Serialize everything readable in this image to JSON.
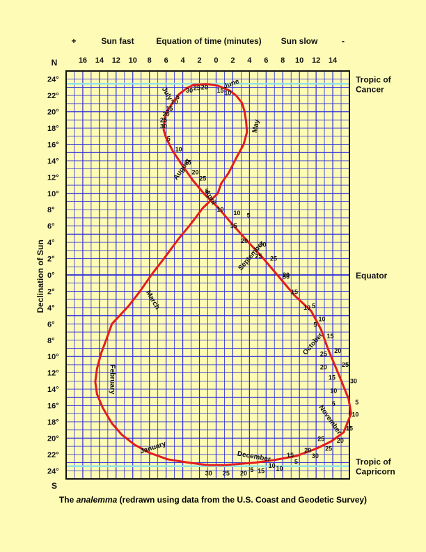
{
  "chart_data": {
    "type": "line",
    "top_labels": {
      "plus": "+",
      "sun_fast": "Sun fast",
      "title": "Equation of time (minutes)",
      "sun_slow": "Sun slow",
      "minus": "-"
    },
    "x_ticks": [
      "16",
      "14",
      "12",
      "10",
      "8",
      "6",
      "4",
      "2",
      "0",
      "2",
      "4",
      "6",
      "8",
      "10",
      "12",
      "14"
    ],
    "x_tick_values": [
      16,
      14,
      12,
      10,
      8,
      6,
      4,
      2,
      0,
      -2,
      -4,
      -6,
      -8,
      -10,
      -12,
      -14
    ],
    "xlim": [
      18,
      -16
    ],
    "ylabel": "Declination of Sun",
    "north": "N",
    "south": "S",
    "y_ticks": [
      "24°",
      "22°",
      "20°",
      "18°",
      "16°",
      "14°",
      "12°",
      "10°",
      "8°",
      "6°",
      "4°",
      "2°",
      "0°",
      "2°",
      "4°",
      "6°",
      "8°",
      "10°",
      "12°",
      "14°",
      "16°",
      "18°",
      "20°",
      "22°",
      "24°"
    ],
    "y_tick_values": [
      24,
      22,
      20,
      18,
      16,
      14,
      12,
      10,
      8,
      6,
      4,
      2,
      0,
      -2,
      -4,
      -6,
      -8,
      -10,
      -12,
      -14,
      -16,
      -18,
      -20,
      -22,
      -24
    ],
    "ylim": [
      25,
      -25
    ],
    "reference_lines": [
      {
        "label": "Tropic of Cancer",
        "value": 23.44
      },
      {
        "label": "Equator",
        "value": 0
      },
      {
        "label": "Tropic of Capricorn",
        "value": -23.44
      }
    ],
    "series": [
      {
        "color": "#e31d1d",
        "points": [
          {
            "x": 3.3,
            "y": -23.0
          },
          {
            "x": 5.8,
            "y": -22.6
          },
          {
            "x": 8.0,
            "y": -21.8
          },
          {
            "x": 9.8,
            "y": -20.8
          },
          {
            "x": 11.3,
            "y": -19.6
          },
          {
            "x": 12.5,
            "y": -18.2
          },
          {
            "x": 13.6,
            "y": -16.3
          },
          {
            "x": 14.3,
            "y": -14.6
          },
          {
            "x": 14.5,
            "y": -13.1
          },
          {
            "x": 14.3,
            "y": -11.5
          },
          {
            "x": 13.8,
            "y": -9.6
          },
          {
            "x": 13.1,
            "y": -7.7
          },
          {
            "x": 12.5,
            "y": -6.0
          },
          {
            "x": 10.5,
            "y": -3.8
          },
          {
            "x": 9.2,
            "y": -2.1
          },
          {
            "x": 7.7,
            "y": 0.1
          },
          {
            "x": 6.2,
            "y": 2.1
          },
          {
            "x": 4.6,
            "y": 4.3
          },
          {
            "x": 3.0,
            "y": 6.3
          },
          {
            "x": 1.6,
            "y": 8.2
          },
          {
            "x": -0.2,
            "y": 10.0
          },
          {
            "x": -0.6,
            "y": 11.2
          },
          {
            "x": -1.5,
            "y": 12.5
          },
          {
            "x": -2.5,
            "y": 14.5
          },
          {
            "x": -3.3,
            "y": 16.0
          },
          {
            "x": -3.7,
            "y": 17.5
          },
          {
            "x": -3.6,
            "y": 18.8
          },
          {
            "x": -3.4,
            "y": 20.1
          },
          {
            "x": -3.1,
            "y": 21.1
          },
          {
            "x": -2.4,
            "y": 22.0
          },
          {
            "x": -1.6,
            "y": 22.6
          },
          {
            "x": -0.2,
            "y": 23.2
          },
          {
            "x": 1.1,
            "y": 23.4
          },
          {
            "x": 2.7,
            "y": 23.3
          },
          {
            "x": 3.5,
            "y": 22.9
          },
          {
            "x": 4.4,
            "y": 22.2
          },
          {
            "x": 5.1,
            "y": 21.3
          },
          {
            "x": 5.8,
            "y": 20.2
          },
          {
            "x": 6.2,
            "y": 19.1
          },
          {
            "x": 6.3,
            "y": 17.8
          },
          {
            "x": 6.0,
            "y": 16.8
          },
          {
            "x": 5.2,
            "y": 15.2
          },
          {
            "x": 4.1,
            "y": 13.5
          },
          {
            "x": 2.8,
            "y": 11.6
          },
          {
            "x": 1.4,
            "y": 9.9
          },
          {
            "x": -0.2,
            "y": 8.3
          },
          {
            "x": -1.7,
            "y": 6.5
          },
          {
            "x": -3.7,
            "y": 4.2
          },
          {
            "x": -5.6,
            "y": 2.1
          },
          {
            "x": -7.6,
            "y": -0.3
          },
          {
            "x": -9.4,
            "y": -2.5
          },
          {
            "x": -11.4,
            "y": -4.4
          },
          {
            "x": -12.6,
            "y": -6.7
          },
          {
            "x": -13.4,
            "y": -9.0
          },
          {
            "x": -14.8,
            "y": -12.4
          },
          {
            "x": -15.9,
            "y": -15.2
          },
          {
            "x": -16.2,
            "y": -17.0
          },
          {
            "x": -15.3,
            "y": -19.3
          },
          {
            "x": -13.8,
            "y": -20.4
          },
          {
            "x": -12.0,
            "y": -21.3
          },
          {
            "x": -9.6,
            "y": -22.2
          },
          {
            "x": -6.9,
            "y": -22.7
          },
          {
            "x": -4.7,
            "y": -23.0
          },
          {
            "x": -1.0,
            "y": -23.3
          },
          {
            "x": 1.0,
            "y": -23.3
          },
          {
            "x": 3.3,
            "y": -23.0
          }
        ]
      }
    ],
    "day_labels": [
      {
        "text": "5",
        "x": -4.3,
        "y": -23.9
      },
      {
        "text": "10",
        "x": -6.7,
        "y": -23.4
      },
      {
        "text": "15",
        "x": -8.9,
        "y": -22.1
      },
      {
        "text": "20",
        "x": -11.0,
        "y": -21.5
      },
      {
        "text": "25",
        "x": -12.6,
        "y": -20.1
      },
      {
        "text": "5",
        "x": -14.1,
        "y": -15.8
      },
      {
        "text": "10",
        "x": -14.1,
        "y": -14.2
      },
      {
        "text": "15",
        "x": -13.9,
        "y": -12.6
      },
      {
        "text": "20",
        "x": -12.9,
        "y": -11.3
      },
      {
        "text": "25",
        "x": -12.9,
        "y": -9.7
      },
      {
        "text": "5",
        "x": -11.9,
        "y": -6.1
      },
      {
        "text": "10",
        "x": -10.9,
        "y": -4.0
      },
      {
        "text": "15",
        "x": -9.4,
        "y": -2.1
      },
      {
        "text": "20",
        "x": -8.4,
        "y": 0.0
      },
      {
        "text": "25",
        "x": -6.9,
        "y": 2.0
      },
      {
        "text": "30",
        "x": -5.6,
        "y": 3.7
      },
      {
        "text": "5",
        "x": -3.9,
        "y": 7.3
      },
      {
        "text": "10",
        "x": -2.5,
        "y": 7.6
      },
      {
        "text": "10",
        "x": -1.4,
        "y": 22.3
      },
      {
        "text": "15",
        "x": -0.5,
        "y": 22.6
      },
      {
        "text": "20",
        "x": 1.4,
        "y": 23.0
      },
      {
        "text": "25",
        "x": 2.3,
        "y": 22.9
      },
      {
        "text": "30",
        "x": 3.2,
        "y": 22.6
      },
      {
        "text": "5",
        "x": 4.6,
        "y": 21.8
      },
      {
        "text": "10",
        "x": 5.0,
        "y": 21.2
      },
      {
        "text": "15",
        "x": 5.6,
        "y": 20.4
      },
      {
        "text": "20",
        "x": 6.0,
        "y": 19.7
      },
      {
        "text": "25",
        "x": 6.3,
        "y": 19.0
      },
      {
        "text": "30",
        "x": 6.3,
        "y": 18.2
      },
      {
        "text": "5",
        "x": 5.7,
        "y": 16.7
      },
      {
        "text": "10",
        "x": 4.5,
        "y": 15.4
      },
      {
        "text": "15",
        "x": 3.4,
        "y": 13.8
      },
      {
        "text": "20",
        "x": 2.5,
        "y": 12.6
      },
      {
        "text": "25",
        "x": 1.6,
        "y": 11.8
      },
      {
        "text": "5",
        "x": 1.1,
        "y": 10.3
      },
      {
        "text": "10",
        "x": -0.5,
        "y": 8.0
      },
      {
        "text": "15",
        "x": -2.1,
        "y": 6.0
      },
      {
        "text": "20",
        "x": -3.4,
        "y": 4.2
      },
      {
        "text": "25",
        "x": -5.1,
        "y": 2.3
      },
      {
        "text": "30",
        "x": -8.4,
        "y": -0.2
      },
      {
        "text": "5",
        "x": -11.7,
        "y": -3.8
      },
      {
        "text": "10",
        "x": -12.7,
        "y": -5.4
      },
      {
        "text": "15",
        "x": -13.7,
        "y": -7.5
      },
      {
        "text": "20",
        "x": -14.6,
        "y": -9.3
      },
      {
        "text": "25",
        "x": -15.5,
        "y": -11.0
      },
      {
        "text": "30",
        "x": -16.5,
        "y": -13.0
      },
      {
        "text": "5",
        "x": -16.9,
        "y": -15.6
      },
      {
        "text": "10",
        "x": -16.7,
        "y": -17.1
      },
      {
        "text": "15",
        "x": -16.0,
        "y": -18.8
      },
      {
        "text": "20",
        "x": -14.9,
        "y": -20.3
      },
      {
        "text": "25",
        "x": -13.5,
        "y": -21.3
      },
      {
        "text": "30",
        "x": -11.9,
        "y": -22.2
      },
      {
        "text": "5",
        "x": -9.6,
        "y": -22.9
      },
      {
        "text": "10",
        "x": -7.6,
        "y": -23.7
      },
      {
        "text": "15",
        "x": -5.4,
        "y": -24.0
      },
      {
        "text": "20",
        "x": -3.3,
        "y": -24.3
      },
      {
        "text": "25",
        "x": -1.2,
        "y": -24.3
      },
      {
        "text": "30",
        "x": 0.9,
        "y": -24.3
      }
    ],
    "month_labels": [
      {
        "text": "January",
        "x": 7.5,
        "y": -21.4,
        "angle": -18
      },
      {
        "text": "February",
        "x": 12.7,
        "y": -12.8,
        "angle": 90
      },
      {
        "text": "March",
        "x": 7.8,
        "y": -3.2,
        "angle": 60
      },
      {
        "text": "April",
        "x": 0.9,
        "y": 9.4,
        "angle": 60
      },
      {
        "text": "May",
        "x": -5.0,
        "y": 18.2,
        "angle": -80
      },
      {
        "text": "June",
        "x": -1.9,
        "y": 23.2,
        "angle": -20
      },
      {
        "text": "July",
        "x": 6.1,
        "y": 22.1,
        "angle": 60
      },
      {
        "text": "August",
        "x": 3.9,
        "y": 12.8,
        "angle": -55
      },
      {
        "text": "September",
        "x": -4.4,
        "y": 2.2,
        "angle": -50
      },
      {
        "text": "October",
        "x": -11.8,
        "y": -8.6,
        "angle": -50
      },
      {
        "text": "November",
        "x": -13.5,
        "y": -17.9,
        "angle": 55
      },
      {
        "text": "December",
        "x": -4.5,
        "y": -22.5,
        "angle": 10
      }
    ]
  },
  "caption": {
    "pre": "The",
    "italic": "analemma",
    "post": "(redrawn using data from the U.S. Coast and Geodetic Survey)"
  }
}
